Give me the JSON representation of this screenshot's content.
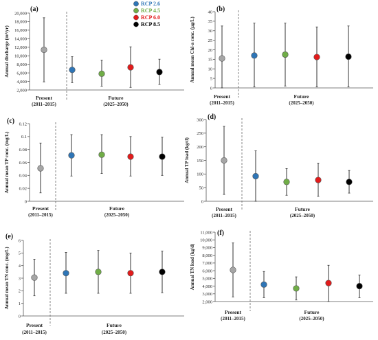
{
  "legend": [
    {
      "label": "RCP 2.6",
      "color": "#2e75b6"
    },
    {
      "label": "RCP 4.5",
      "color": "#70ad47"
    },
    {
      "label": "RCP 6.0",
      "color": "#e21b1b"
    },
    {
      "label": "RCP 8.5",
      "color": "#000000"
    }
  ],
  "present_color": "#a6a6a6",
  "chart_data": [
    {
      "type": "scatter",
      "panel_label": "(a)",
      "ylabel": "Annual discharge (m³/yr)",
      "ylim": [
        2000,
        20000
      ],
      "yticks": [
        2000,
        4000,
        6000,
        8000,
        10000,
        12000,
        14000,
        16000,
        18000,
        20000
      ],
      "ytick_labels": [
        "2,000",
        "4,000",
        "6,000",
        "8,000",
        "10,000",
        "12,000",
        "14,000",
        "16,000",
        "18,000",
        "20,000"
      ],
      "present": {
        "label": "Present",
        "period": "(2011–2015)",
        "mean": 11400,
        "low": 3900,
        "high": 18900
      },
      "future": {
        "label": "Future",
        "period": "(2025–2050)",
        "series": [
          {
            "mean": 6700,
            "low": 3700,
            "high": 9800
          },
          {
            "mean": 5800,
            "low": 2900,
            "high": 9000
          },
          {
            "mean": 7300,
            "low": 2600,
            "high": 12100
          },
          {
            "mean": 6200,
            "low": 3300,
            "high": 9200
          }
        ]
      }
    },
    {
      "type": "scatter",
      "panel_label": "(b)",
      "ylabel": "Annual mean Chl-a conc. (μg/L)",
      "ylim": [
        0,
        40
      ],
      "yticks": [
        0,
        5,
        10,
        15,
        20,
        25,
        30,
        35,
        40
      ],
      "ytick_labels": [
        "0",
        "5",
        "10",
        "15",
        "20",
        "25",
        "30",
        "35",
        "40"
      ],
      "present": {
        "label": "Present",
        "period": "(2011–2015)",
        "mean": 15.5,
        "low": 0,
        "high": 32.5
      },
      "future": {
        "label": "Future",
        "period": "(2025–2050)",
        "series": [
          {
            "mean": 17.0,
            "low": 0.5,
            "high": 34.0
          },
          {
            "mean": 17.5,
            "low": 1.0,
            "high": 34.0
          },
          {
            "mean": 16.2,
            "low": 0.5,
            "high": 32.0
          },
          {
            "mean": 16.4,
            "low": 0.5,
            "high": 32.5
          }
        ]
      }
    },
    {
      "type": "scatter",
      "panel_label": "(c)",
      "ylabel": "Annual mean TP conc. (mg/L)",
      "ylim": [
        0,
        0.12
      ],
      "yticks": [
        0,
        0.02,
        0.04,
        0.06,
        0.08,
        0.1,
        0.12
      ],
      "ytick_labels": [
        "0",
        "0.02",
        "0.04",
        "0.06",
        "0.08",
        "0.1",
        "0.12"
      ],
      "present": {
        "label": "Present",
        "period": "(2011–2015)",
        "mean": 0.051,
        "low": 0.013,
        "high": 0.09
      },
      "future": {
        "label": "Future",
        "period": "(2025–2050)",
        "series": [
          {
            "mean": 0.071,
            "low": 0.039,
            "high": 0.103
          },
          {
            "mean": 0.072,
            "low": 0.043,
            "high": 0.103
          },
          {
            "mean": 0.069,
            "low": 0.039,
            "high": 0.1
          },
          {
            "mean": 0.069,
            "low": 0.04,
            "high": 0.099
          }
        ]
      }
    },
    {
      "type": "scatter",
      "panel_label": "(d)",
      "ylabel": "Annual TP load (kg/d)",
      "ylim": [
        0,
        300
      ],
      "yticks": [
        0,
        50,
        100,
        150,
        200,
        250,
        300
      ],
      "ytick_labels": [
        "0",
        "50",
        "100",
        "150",
        "200",
        "250",
        "300"
      ],
      "present": {
        "label": "Present",
        "period": "(2011–2015)",
        "mean": 150,
        "low": 25,
        "high": 275
      },
      "future": {
        "label": "Future",
        "period": "(2025–2050)",
        "series": [
          {
            "mean": 92,
            "low": 0,
            "high": 185
          },
          {
            "mean": 71,
            "low": 22,
            "high": 120
          },
          {
            "mean": 78,
            "low": 18,
            "high": 140
          },
          {
            "mean": 71,
            "low": 30,
            "high": 113
          }
        ]
      }
    },
    {
      "type": "scatter",
      "panel_label": "(e)",
      "ylabel": "Annual mean TN conc. (mg/L)",
      "ylim": [
        0,
        6
      ],
      "yticks": [
        0,
        1,
        2,
        3,
        4,
        5,
        6
      ],
      "ytick_labels": [
        "0",
        "1",
        "2",
        "3",
        "4",
        "5",
        "6"
      ],
      "present": {
        "label": "Present",
        "period": "(2011–2015)",
        "mean": 3.05,
        "low": 1.6,
        "high": 4.5
      },
      "future": {
        "label": "Future",
        "period": "(2025–2050)",
        "series": [
          {
            "mean": 3.4,
            "low": 1.8,
            "high": 5.05
          },
          {
            "mean": 3.5,
            "low": 1.8,
            "high": 5.2
          },
          {
            "mean": 3.4,
            "low": 1.8,
            "high": 5.0
          },
          {
            "mean": 3.5,
            "low": 1.85,
            "high": 5.15
          }
        ]
      }
    },
    {
      "type": "scatter",
      "panel_label": "(f)",
      "ylabel": "Annual TN load (kg/d)",
      "ylim": [
        2000,
        11000
      ],
      "yticks": [
        2000,
        3000,
        4000,
        5000,
        6000,
        7000,
        8000,
        9000,
        10000,
        11000
      ],
      "ytick_labels": [
        "2,000",
        "3,000",
        "4,000",
        "5,000",
        "6,000",
        "7,000",
        "8,000",
        "9,000",
        "10,000",
        "11,000"
      ],
      "present": {
        "label": "Present",
        "period": "(2011–2015)",
        "mean": 6100,
        "low": 2600,
        "high": 9600
      },
      "future": {
        "label": "Future",
        "period": "(2025–2050)",
        "series": [
          {
            "mean": 4200,
            "low": 2500,
            "high": 5900
          },
          {
            "mean": 3700,
            "low": 2200,
            "high": 5200
          },
          {
            "mean": 4400,
            "low": 2000,
            "high": 6700
          },
          {
            "mean": 4000,
            "low": 2500,
            "high": 5450
          }
        ]
      }
    }
  ]
}
